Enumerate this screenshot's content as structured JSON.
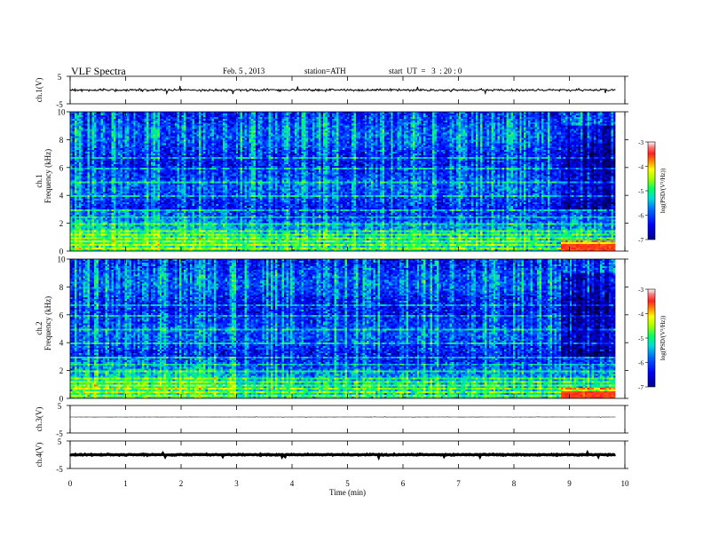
{
  "header": {
    "title": "VLF Spectra",
    "date": "Feb. 5 , 2013",
    "station": "station=ATH",
    "start": "start  UT  =   3  : 20 : 0"
  },
  "chart_data": {
    "type": "heatmap",
    "x_axis": {
      "label": "Time  (min)",
      "range": [
        0,
        10
      ],
      "ticks": [
        "0",
        "1",
        "2",
        "3",
        "4",
        "5",
        "6",
        "7",
        "8",
        "9",
        "10"
      ],
      "data_end": 9.83
    },
    "panels": [
      {
        "id": "ch1-waveform",
        "kind": "waveform",
        "ylabel": "ch.1(V)",
        "ylim": [
          -5,
          5
        ],
        "ytick_labels": [
          "5",
          "-5"
        ],
        "baseline": 0.0,
        "amplitude": 0.6
      },
      {
        "id": "ch1-spectrogram",
        "kind": "spectrogram",
        "ylabel_top": "ch.1",
        "ylabel": "Frequency  (kHz)",
        "ylim": [
          0,
          10
        ],
        "ytick_labels": [
          "0",
          "2",
          "4",
          "6",
          "8",
          "10"
        ],
        "colorbar": {
          "label": "log(PSD/(V²/Hz))",
          "range": [
            -7,
            -3
          ],
          "tick_labels": [
            "-3",
            "-4",
            "-5",
            "-6",
            "-7"
          ]
        },
        "step_change_min": 2.98,
        "transition_min": 8.85,
        "narrowband_lines_khz": [
          0.25,
          0.5,
          0.75,
          1.0,
          1.25,
          1.5,
          2.0,
          2.5,
          3.0,
          4.0,
          5.0,
          6.0,
          6.75
        ]
      },
      {
        "id": "ch2-spectrogram",
        "kind": "spectrogram",
        "ylabel_top": "ch.2",
        "ylabel": "Frequency  (kHz)",
        "ylim": [
          0,
          10
        ],
        "ytick_labels": [
          "0",
          "2",
          "4",
          "6",
          "8",
          "10"
        ],
        "colorbar": {
          "label": "log(PSD/(V²/Hz))",
          "range": [
            -7,
            -3
          ],
          "tick_labels": [
            "-3",
            "-4",
            "-5",
            "-6",
            "-7"
          ]
        },
        "step_change_min": 2.98,
        "transition_min": 8.85,
        "narrowband_lines_khz": [
          0.25,
          0.5,
          0.75,
          1.0,
          1.25,
          1.5,
          2.0,
          2.5,
          3.0,
          4.0,
          5.0,
          6.0,
          6.75
        ]
      },
      {
        "id": "ch3-waveform",
        "kind": "waveform",
        "ylabel": "ch.3(V)",
        "ylim": [
          -5,
          5
        ],
        "ytick_labels": [
          "5",
          "-5"
        ],
        "baseline": 0.8,
        "amplitude": 0.05
      },
      {
        "id": "ch4-waveform",
        "kind": "waveform",
        "ylabel": "ch.4(V)",
        "ylim": [
          -5,
          5
        ],
        "ytick_labels": [
          "5",
          "-5"
        ],
        "baseline": 0.0,
        "amplitude": 0.25
      }
    ]
  }
}
